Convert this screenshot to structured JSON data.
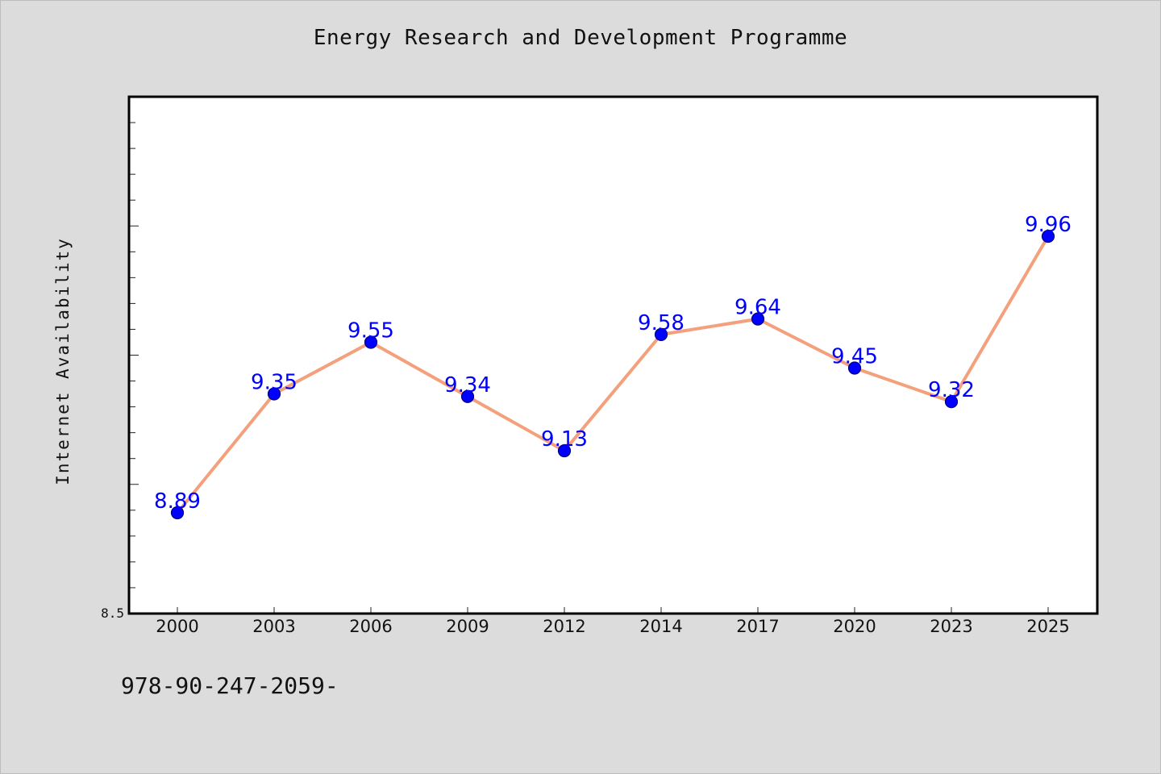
{
  "chart_data": {
    "type": "line",
    "title": "Energy Research and Development Programme",
    "xlabel": "",
    "ylabel": "Internet Availability",
    "categories": [
      "2000",
      "2003",
      "2006",
      "2009",
      "2012",
      "2014",
      "2017",
      "2020",
      "2023",
      "2025"
    ],
    "series": [
      {
        "values": [
          8.89,
          9.35,
          9.55,
          9.34,
          9.13,
          9.58,
          9.64,
          9.45,
          9.32,
          9.96
        ],
        "data_labels": [
          "8.89",
          "9.35",
          "9.55",
          "9.34",
          "9.13",
          "9.58",
          "9.64",
          "9.45",
          "9.32",
          "9.96"
        ]
      }
    ],
    "ylim": [
      8.5,
      10.5
    ],
    "yticks_labeled": [
      {
        "value": 8.5,
        "label": "8.5"
      }
    ],
    "grid": false,
    "legend": "none",
    "colors": {
      "line": "#f4a07c",
      "marker": "#0000ff",
      "marker_edge": "#000080",
      "data_label": "#0000ff"
    }
  },
  "footer": {
    "text": "978-90-247-2059-"
  }
}
